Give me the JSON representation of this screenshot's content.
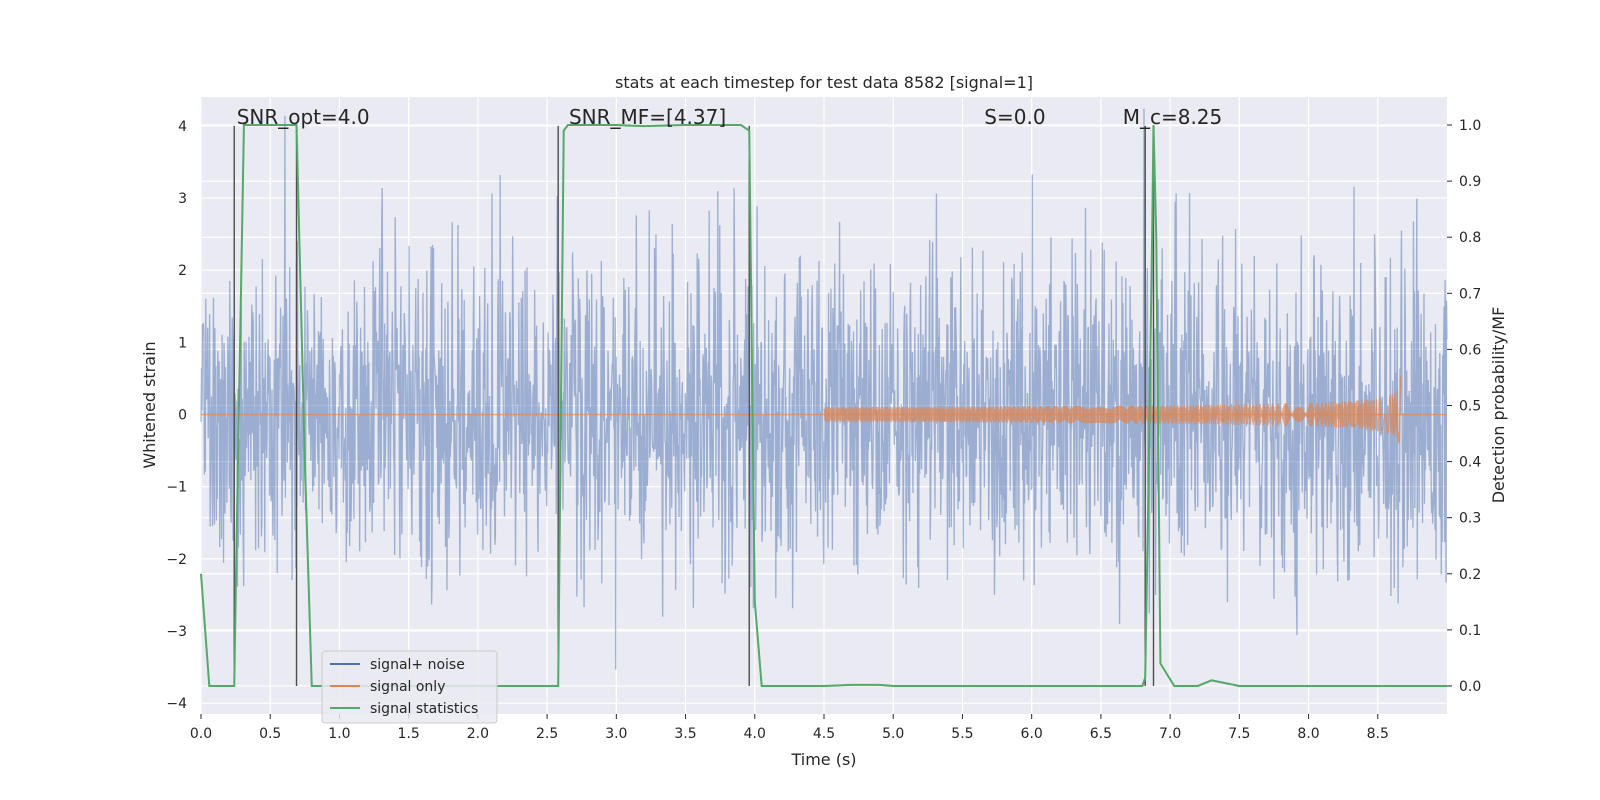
{
  "chart_data": {
    "type": "line",
    "title": "stats at each timestep for test data 8582 [signal=1]",
    "xlabel": "Time (s)",
    "ylabel_left": "Whitened strain",
    "ylabel_right": "Detection probability/MF",
    "xlim": [
      0,
      9.0
    ],
    "ylim_left": [
      -4.15,
      4.4
    ],
    "ylim_right": [
      -0.05,
      1.05
    ],
    "xticks": [
      "0.0",
      "0.5",
      "1.0",
      "1.5",
      "2.0",
      "2.5",
      "3.0",
      "3.5",
      "4.0",
      "4.5",
      "5.0",
      "5.5",
      "6.0",
      "6.5",
      "7.0",
      "7.5",
      "8.0",
      "8.5"
    ],
    "yticks_left": [
      "−4",
      "−3",
      "−2",
      "−1",
      "0",
      "1",
      "2",
      "3",
      "4"
    ],
    "yticks_right": [
      "0.0",
      "0.1",
      "0.2",
      "0.3",
      "0.4",
      "0.5",
      "0.6",
      "0.7",
      "0.8",
      "0.9",
      "1.0"
    ],
    "grid": true,
    "legend_placement": "lower-left",
    "annotations": [
      {
        "text": "SNR_opt=4.0",
        "x": 0.2,
        "y": 4.0
      },
      {
        "text": "SNR_MF=[4.37]",
        "x": 2.6,
        "y": 4.0
      },
      {
        "text": "S=0.0",
        "x": 5.6,
        "y": 4.0
      },
      {
        "text": "M_c=8.25",
        "x": 6.6,
        "y": 4.0
      }
    ],
    "vertical_markers": [
      0.24,
      0.69,
      2.58,
      3.96,
      6.82,
      6.88
    ],
    "series": [
      {
        "name": "signal+ noise",
        "color": "#4c72b0",
        "kind": "noise",
        "amplitude_std": 1.0,
        "x_range": [
          0,
          9.0
        ]
      },
      {
        "name": "signal only",
        "color": "#dd8452",
        "kind": "chirp",
        "start": 4.5,
        "merger": 8.67,
        "peak_amplitude": 0.6
      },
      {
        "name": "signal statistics",
        "color": "#55a868",
        "kind": "line",
        "axis": "right",
        "x": [
          0.0,
          0.03,
          0.06,
          0.1,
          0.15,
          0.2,
          0.24,
          0.26,
          0.31,
          0.35,
          0.4,
          0.5,
          0.6,
          0.67,
          0.69,
          0.72,
          0.75,
          0.8,
          0.85,
          1.0,
          1.5,
          2.0,
          2.5,
          2.56,
          2.58,
          2.62,
          2.65,
          2.7,
          3.0,
          3.2,
          3.5,
          3.8,
          3.9,
          3.96,
          4.0,
          4.05,
          4.1,
          4.5,
          4.7,
          4.9,
          5.0,
          5.5,
          6.0,
          6.5,
          6.8,
          6.82,
          6.84,
          6.87,
          6.88,
          6.9,
          6.93,
          6.98,
          7.03,
          7.2,
          7.3,
          7.5,
          8.0,
          8.5,
          9.0
        ],
        "y": [
          0.2,
          0.1,
          0.0,
          0.0,
          0.0,
          0.0,
          0.0,
          0.3,
          1.0,
          1.0,
          1.0,
          1.0,
          1.0,
          1.0,
          1.0,
          0.7,
          0.4,
          0.0,
          0.0,
          0.0,
          0.0,
          0.0,
          0.0,
          0.0,
          0.0,
          0.99,
          1.0,
          1.0,
          1.0,
          0.998,
          1.0,
          1.0,
          1.0,
          0.99,
          0.15,
          0.0,
          0.0,
          0.0,
          0.002,
          0.002,
          0.0,
          0.0,
          0.0,
          0.0,
          0.0,
          0.015,
          0.3,
          0.8,
          1.0,
          0.8,
          0.04,
          0.02,
          0.0,
          0.0,
          0.01,
          0.0,
          0.0,
          0.0,
          0.0
        ]
      }
    ]
  },
  "legend": {
    "items": [
      {
        "label": "signal+ noise",
        "color": "#4c72b0"
      },
      {
        "label": "signal only",
        "color": "#dd8452"
      },
      {
        "label": "signal statistics",
        "color": "#55a868"
      }
    ]
  }
}
